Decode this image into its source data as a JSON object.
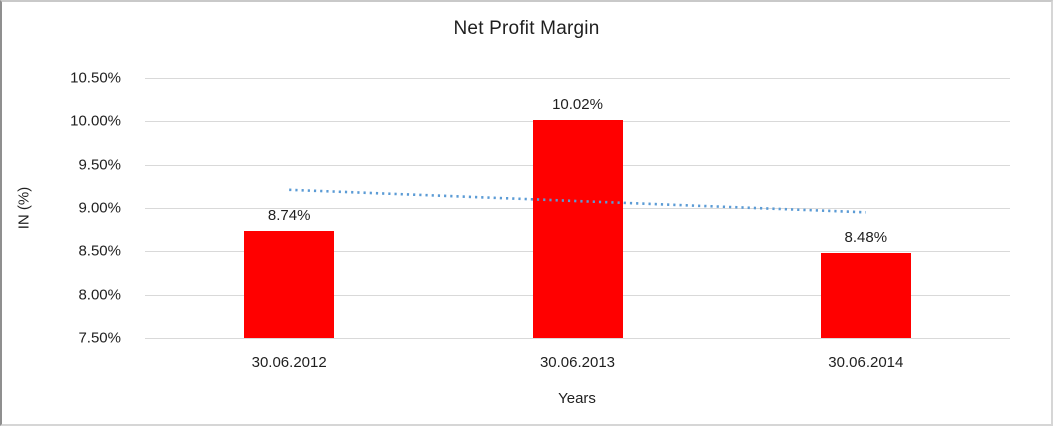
{
  "chart_data": {
    "type": "bar",
    "title": "Net Profit Margin",
    "xlabel": "Years",
    "ylabel": "IN (%)",
    "categories": [
      "30.06.2012",
      "30.06.2013",
      "30.06.2014"
    ],
    "series": [
      {
        "name": "Net Profit Margin",
        "values": [
          8.74,
          10.02,
          8.48
        ]
      }
    ],
    "data_labels": [
      "8.74%",
      "10.02%",
      "8.48%"
    ],
    "ylim": [
      7.5,
      10.5
    ],
    "yticks": [
      7.5,
      8.0,
      8.5,
      9.0,
      9.5,
      10.0,
      10.5
    ],
    "ytick_labels": [
      "7.50%",
      "8.00%",
      "8.50%",
      "9.00%",
      "9.50%",
      "10.00%",
      "10.50%"
    ],
    "grid": true,
    "legend": "none",
    "bar_color": "#ff0000",
    "gridline_color": "#d9d9d9",
    "text_color": "#1f1f1f",
    "trendline": {
      "type": "linear",
      "start_value": 9.21,
      "end_value": 8.95,
      "color": "#5b9bd5",
      "style": "dotted"
    }
  }
}
